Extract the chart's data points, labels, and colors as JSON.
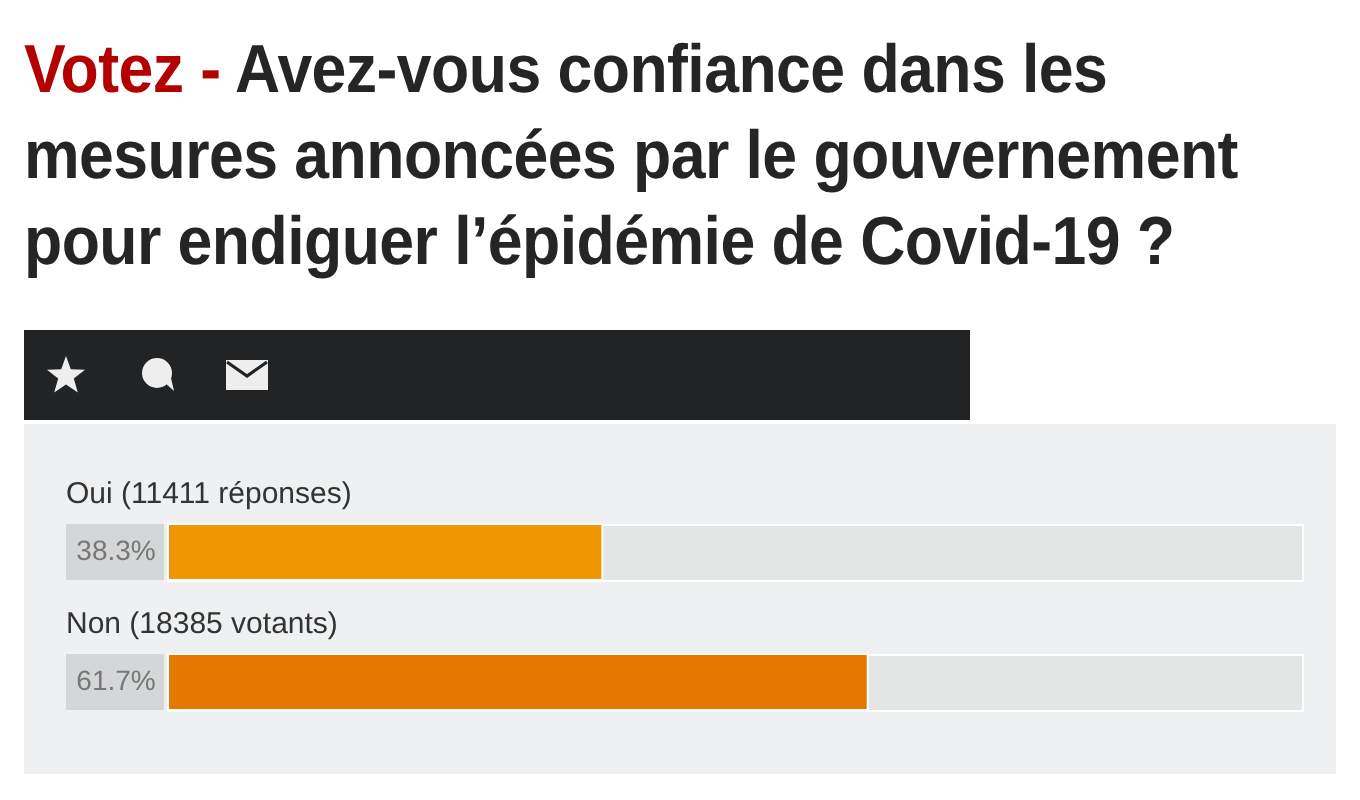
{
  "chart_data": {
    "type": "bar",
    "orientation": "horizontal",
    "title": "Votez - Avez-vous confiance dans les mesures annoncées par le gouvernement pour endiguer l’épidémie de Covid-19 ?",
    "categories": [
      "Oui (11411 réponses)",
      "Non (18385 votants)"
    ],
    "values": [
      38.3,
      61.7
    ],
    "colors": [
      "#f09600",
      "#e57800"
    ],
    "value_labels": [
      "38.3%",
      "61.7%"
    ],
    "xlim": [
      0,
      100
    ],
    "tick_labels": "y"
  }
}
